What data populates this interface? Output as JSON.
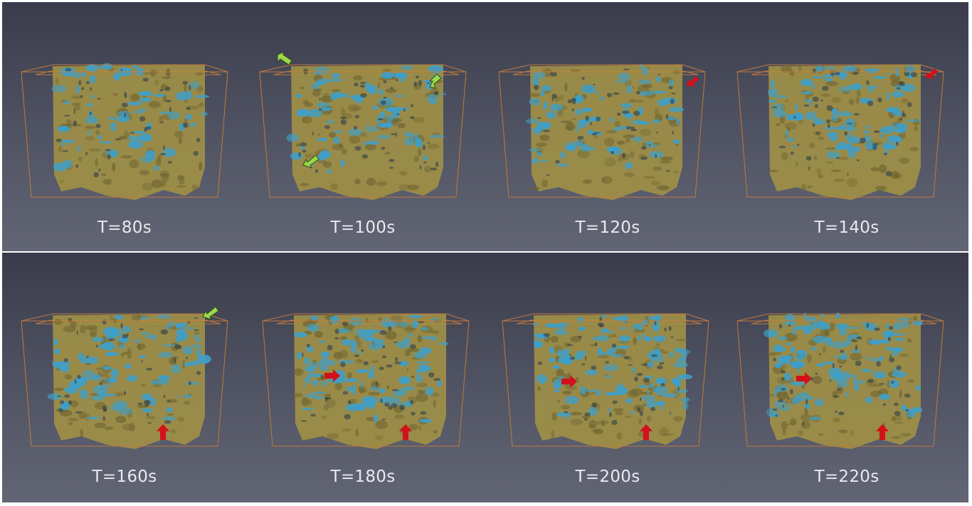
{
  "rows": [
    {
      "frames": [
        {
          "label": "T=80s",
          "markers": []
        },
        {
          "label": "T=100s",
          "markers": [
            "green-arrow",
            "green-arrow",
            "green-arrow"
          ]
        },
        {
          "label": "T=120s",
          "markers": [
            "red-arrow"
          ]
        },
        {
          "label": "T=140s",
          "markers": [
            "red-arrow"
          ]
        }
      ]
    },
    {
      "frames": [
        {
          "label": "T=160s",
          "markers": [
            "green-arrow",
            "red-arrow"
          ]
        },
        {
          "label": "T=180s",
          "markers": [
            "red-arrow",
            "red-arrow"
          ]
        },
        {
          "label": "T=200s",
          "markers": [
            "red-arrow",
            "red-arrow"
          ]
        },
        {
          "label": "T=220s",
          "markers": [
            "red-arrow",
            "red-arrow"
          ]
        }
      ]
    }
  ],
  "colors": {
    "background_top": "#3a3c4b",
    "background_bottom": "#626574",
    "solid_phase": "#a08f46",
    "fluid_phase": "#3d9fca",
    "bounding_box": "#c07a3c",
    "green_marker": "#9ad84a",
    "red_marker": "#d4101a"
  }
}
